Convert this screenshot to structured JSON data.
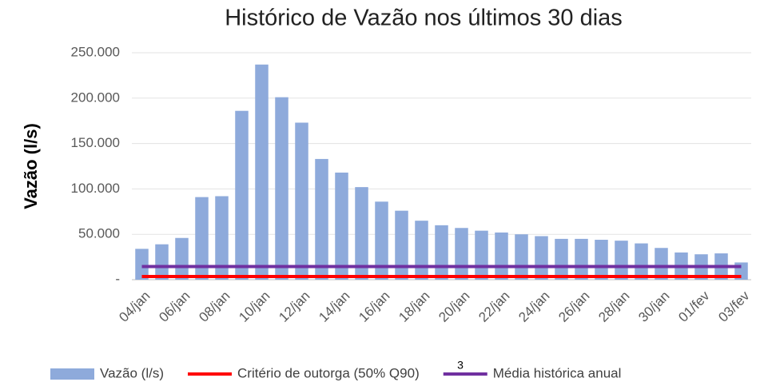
{
  "chart_data": {
    "type": "bar",
    "title": "Histórico de Vazão nos últimos 30 dias",
    "y_label": "Vazão (l/s)",
    "categories": [
      "04/jan",
      null,
      "06/jan",
      null,
      "08/jan",
      null,
      "10/jan",
      null,
      "12/jan",
      null,
      "14/jan",
      null,
      "16/jan",
      null,
      "18/jan",
      null,
      "20/jan",
      null,
      "22/jan",
      null,
      "24/jan",
      null,
      "26/jan",
      null,
      "28/jan",
      null,
      "30/jan",
      null,
      "01/fev",
      null,
      "03/fev"
    ],
    "series": [
      {
        "name": "Vazão (l/s)",
        "type": "bar",
        "color": "#8eaadb",
        "values": [
          34000,
          39000,
          46000,
          91000,
          92000,
          186000,
          237000,
          201000,
          173000,
          133000,
          118000,
          102000,
          86000,
          76000,
          65000,
          60000,
          57000,
          54000,
          52000,
          50000,
          48000,
          45000,
          45000,
          44000,
          43000,
          40000,
          35000,
          30000,
          28000,
          29000,
          19000
        ]
      },
      {
        "name": "Critério de outorga (50% Q90)",
        "type": "line",
        "color": "#ff0000",
        "values": [
          3500,
          3500,
          3500,
          3500,
          3500,
          3500,
          3500,
          3500,
          3500,
          3500,
          3500,
          3500,
          3500,
          3500,
          3500,
          3500,
          3500,
          3500,
          3500,
          3500,
          3500,
          3500,
          3500,
          3500,
          3500,
          3500,
          3500,
          3500,
          3500,
          3500,
          3500
        ]
      },
      {
        "name": "Média histórica anual",
        "type": "line",
        "color": "#7030a0",
        "values": [
          14500,
          14500,
          14500,
          14500,
          14500,
          14500,
          14500,
          14500,
          14500,
          14500,
          14500,
          14500,
          14500,
          14500,
          14500,
          14500,
          14500,
          14500,
          14500,
          14500,
          14500,
          14500,
          14500,
          14500,
          14500,
          14500,
          14500,
          14500,
          14500,
          14500,
          14500
        ]
      }
    ],
    "ylim": [
      0,
      250000
    ],
    "yticks": [
      {
        "value": 0,
        "label": "-"
      },
      {
        "value": 50000,
        "label": "50.000"
      },
      {
        "value": 100000,
        "label": "100.000"
      },
      {
        "value": 150000,
        "label": "150.000"
      },
      {
        "value": 200000,
        "label": "200.000"
      },
      {
        "value": 250000,
        "label": "250.000"
      }
    ],
    "grid": true,
    "legend": "bottom",
    "page_number": "3"
  }
}
